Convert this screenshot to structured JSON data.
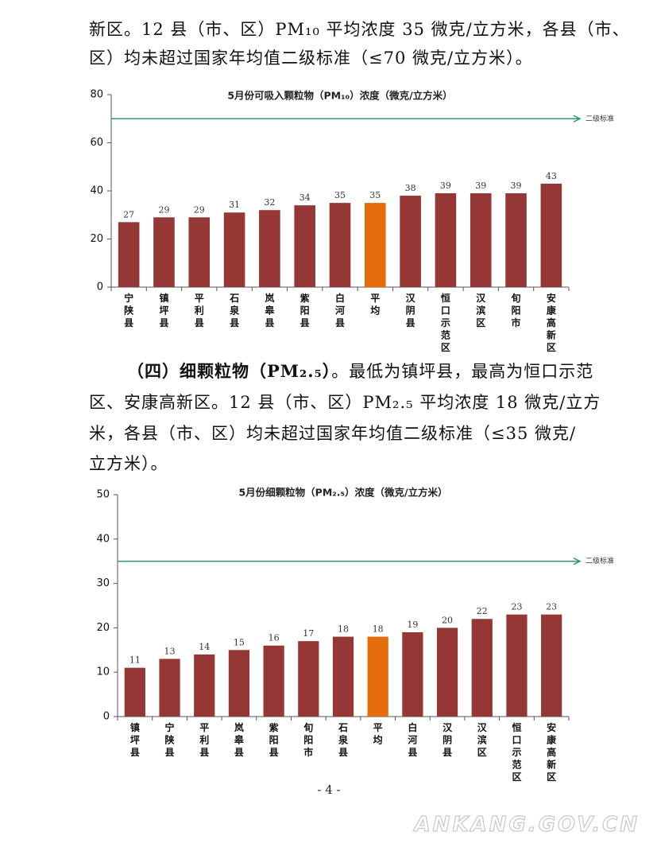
{
  "paragraph_1": [
    "新区。12 县（市、区）PM₁₀ 平均浓度 35 微克/立方米，各县（市、",
    "区）均未超过国家年均值二级标准（≤70 微克/立方米）。"
  ],
  "paragraph_2": {
    "lead": "（四）细颗粒物（PM₂.₅）",
    "first_line_rest": "。最低为镇坪县，最高为恒口示范",
    "lines": [
      "区、安康高新区。12 县（市、区）PM₂.₅ 平均浓度 18 微克/立方",
      "米，各县（市、区）均未超过国家年均值二级标准（≤35 微克/",
      "立方米）。"
    ]
  },
  "chart_data": [
    {
      "type": "bar",
      "title": "5月份可吸入颗粒物（PM₁₀）浓度（微克/立方米）",
      "categories": [
        "宁陕县",
        "镇坪县",
        "平利县",
        "石泉县",
        "岚皋县",
        "紫阳县",
        "白河县",
        "平均",
        "汉阴县",
        "恒口示范区",
        "汉滨区",
        "旬阳市",
        "安康高新区"
      ],
      "values": [
        27,
        29,
        29,
        31,
        32,
        34,
        35,
        35,
        38,
        39,
        39,
        39,
        43
      ],
      "colors": [
        "#953735",
        "#953735",
        "#953735",
        "#953735",
        "#953735",
        "#953735",
        "#953735",
        "#e46c0a",
        "#953735",
        "#953735",
        "#953735",
        "#953735",
        "#953735"
      ],
      "ylim": [
        0,
        80
      ],
      "yticks": [
        0,
        20,
        40,
        60,
        80
      ],
      "reference_line": {
        "value": 70,
        "label": "二级标准",
        "color": "#2e9a70"
      }
    },
    {
      "type": "bar",
      "title": "5月份细颗粒物（PM₂.₅）浓度（微克/立方米）",
      "categories": [
        "镇坪县",
        "宁陕县",
        "平利县",
        "岚皋县",
        "紫阳县",
        "旬阳市",
        "石泉县",
        "平均",
        "白河县",
        "汉阴县",
        "汉滨区",
        "恒口示范区",
        "安康高新区"
      ],
      "values": [
        11,
        13,
        14,
        15,
        16,
        17,
        18,
        18,
        19,
        20,
        22,
        23,
        23
      ],
      "colors": [
        "#953735",
        "#953735",
        "#953735",
        "#953735",
        "#953735",
        "#953735",
        "#953735",
        "#e46c0a",
        "#953735",
        "#953735",
        "#953735",
        "#953735",
        "#953735"
      ],
      "ylim": [
        0,
        50
      ],
      "yticks": [
        0,
        10,
        20,
        30,
        40,
        50
      ],
      "reference_line": {
        "value": 35,
        "label": "二级标准",
        "color": "#2e9a70"
      }
    }
  ],
  "page_number": "- 4 -",
  "watermark": "ANKANG.GOV.CN"
}
